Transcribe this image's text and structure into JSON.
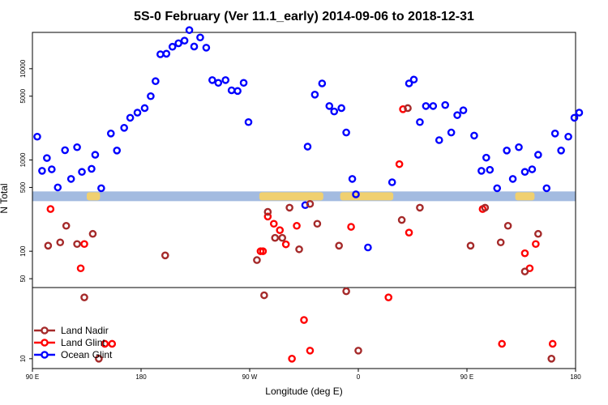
{
  "chart_data": {
    "type": "scatter",
    "title": "5S-0 February (Ver 11.1_early)   2014-09-06 to 2018-12-31",
    "xlabel": "Longitude (deg E)",
    "ylabel": "N Total",
    "xlim": [
      90,
      540
    ],
    "x_ticks": [
      {
        "value": 90,
        "label": "90 E"
      },
      {
        "value": 180,
        "label": "180"
      },
      {
        "value": 270,
        "label": "90 W"
      },
      {
        "value": 360,
        "label": "0"
      },
      {
        "value": 450,
        "label": "90 E"
      },
      {
        "value": 540,
        "label": "180"
      }
    ],
    "y_ticks_upper": [
      {
        "value": 100,
        "label": "100"
      },
      {
        "value": 500,
        "label": "500"
      },
      {
        "value": 1000,
        "label": "1000"
      },
      {
        "value": 5000,
        "label": "5000"
      },
      {
        "value": 10000,
        "label": "10000"
      }
    ],
    "y_ticks_lower": [
      {
        "value": 10,
        "label": "10"
      },
      {
        "value": 50,
        "label": "50"
      }
    ],
    "upper_ylim_log": [
      40,
      25000
    ],
    "lower_ylim_log": [
      8,
      50
    ],
    "band_value_approx": 400,
    "legend": {
      "position": "bottom-left",
      "entries": [
        {
          "name": "Land Nadir",
          "color": "#a52a2a"
        },
        {
          "name": "Land Glint",
          "color": "#ff0000"
        },
        {
          "name": "Ocean Glint",
          "color": "#0000ff"
        }
      ]
    },
    "colors": {
      "band": "#a3bbe0",
      "land": "#f0d070"
    },
    "series": [
      {
        "name": "Ocean Glint",
        "color": "#0000ff",
        "points": [
          [
            94,
            1800
          ],
          [
            98,
            760
          ],
          [
            102,
            1050
          ],
          [
            106,
            790
          ],
          [
            111,
            500
          ],
          [
            117,
            1280
          ],
          [
            122,
            620
          ],
          [
            127,
            1380
          ],
          [
            131,
            740
          ],
          [
            139,
            800
          ],
          [
            142,
            1140
          ],
          [
            147,
            490
          ],
          [
            155,
            1950
          ],
          [
            160,
            1270
          ],
          [
            166,
            2250
          ],
          [
            171,
            2900
          ],
          [
            177,
            3300
          ],
          [
            183,
            3700
          ],
          [
            188,
            5000
          ],
          [
            192,
            7300
          ],
          [
            196,
            14400
          ],
          [
            201,
            14600
          ],
          [
            206,
            17400
          ],
          [
            211,
            19000
          ],
          [
            216,
            20300
          ],
          [
            220,
            26500
          ],
          [
            224,
            17500
          ],
          [
            229,
            22000
          ],
          [
            234,
            17000
          ],
          [
            239,
            7500
          ],
          [
            244,
            7000
          ],
          [
            250,
            7500
          ],
          [
            255,
            5800
          ],
          [
            260,
            5700
          ],
          [
            265,
            7000
          ],
          [
            269,
            2600
          ],
          [
            316,
            320
          ],
          [
            318,
            1400
          ],
          [
            324,
            5200
          ],
          [
            330,
            6900
          ],
          [
            336,
            3900
          ],
          [
            340,
            3400
          ],
          [
            346,
            3700
          ],
          [
            350,
            2000
          ],
          [
            355,
            620
          ],
          [
            358,
            420
          ],
          [
            368,
            110
          ],
          [
            388,
            570
          ],
          [
            402,
            6900
          ],
          [
            406,
            7600
          ],
          [
            411,
            2600
          ],
          [
            416,
            3900
          ],
          [
            422,
            3900
          ],
          [
            427,
            1650
          ],
          [
            432,
            4000
          ],
          [
            437,
            2000
          ],
          [
            442,
            3100
          ],
          [
            447,
            3500
          ],
          [
            456,
            1850
          ],
          [
            462,
            760
          ],
          [
            466,
            1060
          ],
          [
            469,
            780
          ],
          [
            475,
            490
          ],
          [
            483,
            1270
          ],
          [
            488,
            620
          ],
          [
            493,
            1380
          ],
          [
            498,
            740
          ],
          [
            504,
            790
          ],
          [
            509,
            1140
          ],
          [
            516,
            490
          ],
          [
            523,
            1950
          ],
          [
            528,
            1270
          ],
          [
            534,
            1800
          ],
          [
            539,
            2900
          ],
          [
            543,
            3300
          ]
        ]
      },
      {
        "name": "Land Glint",
        "color": "#ff0000",
        "points": [
          [
            105,
            290
          ],
          [
            130,
            65
          ],
          [
            133,
            120
          ],
          [
            150,
            14
          ],
          [
            156,
            14
          ],
          [
            279,
            100
          ],
          [
            281,
            100
          ],
          [
            285,
            240
          ],
          [
            290,
            200
          ],
          [
            295,
            170
          ],
          [
            300,
            119
          ],
          [
            305,
            10
          ],
          [
            309,
            190
          ],
          [
            315,
            24
          ],
          [
            320,
            12
          ],
          [
            354,
            185
          ],
          [
            385,
            40
          ],
          [
            394,
            900
          ],
          [
            397,
            3600
          ],
          [
            402,
            160
          ],
          [
            463,
            290
          ],
          [
            479,
            14
          ],
          [
            498,
            95
          ],
          [
            502,
            65
          ],
          [
            507,
            120
          ],
          [
            521,
            14
          ]
        ]
      },
      {
        "name": "Land Nadir",
        "color": "#a52a2a",
        "points": [
          [
            103,
            115
          ],
          [
            113,
            125
          ],
          [
            118,
            190
          ],
          [
            127,
            120
          ],
          [
            133,
            40
          ],
          [
            140,
            155
          ],
          [
            145,
            10
          ],
          [
            200,
            90
          ],
          [
            276,
            80
          ],
          [
            282,
            42
          ],
          [
            285,
            270
          ],
          [
            291,
            140
          ],
          [
            297,
            140
          ],
          [
            303,
            300
          ],
          [
            311,
            105
          ],
          [
            320,
            330
          ],
          [
            326,
            200
          ],
          [
            344,
            115
          ],
          [
            350,
            46
          ],
          [
            360,
            12
          ],
          [
            396,
            220
          ],
          [
            401,
            3700
          ],
          [
            411,
            300
          ],
          [
            453,
            115
          ],
          [
            465,
            300
          ],
          [
            478,
            125
          ],
          [
            484,
            190
          ],
          [
            498,
            60
          ],
          [
            509,
            155
          ],
          [
            520,
            10
          ]
        ]
      }
    ]
  }
}
